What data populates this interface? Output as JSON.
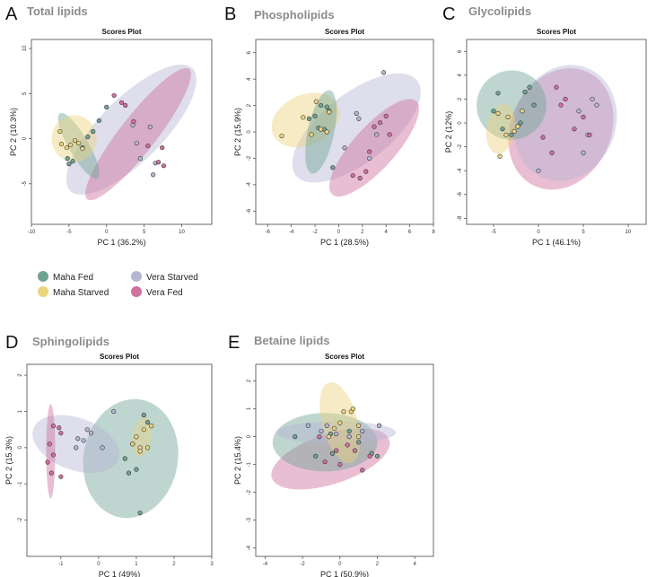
{
  "colors": {
    "Maha Fed": "#6fa394",
    "Maha Starved": "#ecd37e",
    "Vera Starved": "#b5b6d4",
    "Vera Fed": "#cf6f9e"
  },
  "legend": {
    "items": [
      "Maha Fed",
      "Maha Starved",
      "Vera Starved",
      "Vera Fed"
    ]
  },
  "chart_data": [
    {
      "letter": "A",
      "panel_title": "Total lipids",
      "title": "Scores Plot",
      "type": "scatter",
      "xlabel": "PC 1 (36.2%)",
      "ylabel": "PC 2 (10.3%)",
      "xlim": [
        -10,
        14
      ],
      "ylim": [
        -9.5,
        11
      ],
      "xticks": [
        -10,
        -5,
        0,
        5,
        10
      ],
      "yticks": [
        -5,
        0,
        5,
        10
      ],
      "ellipses": [
        {
          "group": "Vera Starved",
          "cx": 3.3,
          "cy": 1.0,
          "rx": 11.5,
          "ry": 3.5,
          "angle": -45
        },
        {
          "group": "Vera Fed",
          "cx": 4.2,
          "cy": 0.5,
          "rx": 11.0,
          "ry": 2.0,
          "angle": -52
        },
        {
          "group": "Maha Fed",
          "cx": -3.7,
          "cy": -0.8,
          "rx": 5.0,
          "ry": 1.1,
          "angle": 60
        },
        {
          "group": "Maha Starved",
          "cx": -4.3,
          "cy": 0.0,
          "rx": 3.0,
          "ry": 2.6,
          "angle": 0
        }
      ],
      "series": [
        {
          "name": "Maha Fed",
          "points": [
            [
              -5.2,
              -2.2
            ],
            [
              -5.0,
              -2.8
            ],
            [
              -4.5,
              -2.5
            ],
            [
              -3.2,
              -1.0
            ],
            [
              -2.5,
              0.2
            ],
            [
              -1.8,
              0.8
            ],
            [
              -1.0,
              2.0
            ],
            [
              0.0,
              3.5
            ]
          ]
        },
        {
          "name": "Maha Starved",
          "points": [
            [
              -6.2,
              0.8
            ],
            [
              -6.0,
              -0.6
            ],
            [
              -5.3,
              -1.0
            ],
            [
              -4.8,
              -0.7
            ],
            [
              -4.2,
              -0.2
            ],
            [
              -3.7,
              -0.5
            ],
            [
              -3.2,
              -1.1
            ]
          ]
        },
        {
          "name": "Vera Starved",
          "points": [
            [
              3.5,
              1.5
            ],
            [
              4.0,
              -0.5
            ],
            [
              4.5,
              -2.2
            ],
            [
              5.8,
              1.3
            ],
            [
              6.2,
              -4.0
            ],
            [
              6.5,
              -2.7
            ]
          ]
        },
        {
          "name": "Vera Fed",
          "points": [
            [
              1.0,
              4.8
            ],
            [
              2.0,
              4.0
            ],
            [
              2.5,
              3.7
            ],
            [
              3.6,
              1.9
            ],
            [
              5.5,
              -0.8
            ],
            [
              6.9,
              -2.6
            ],
            [
              7.4,
              -1.0
            ],
            [
              7.6,
              -3.0
            ]
          ]
        }
      ]
    },
    {
      "letter": "B",
      "panel_title": "Phospholipids",
      "title": "Scores Plot",
      "type": "scatter",
      "xlabel": "PC 1 (28.5%)",
      "ylabel": "PC 2 (15.9%)",
      "xlim": [
        -7,
        8
      ],
      "ylim": [
        -7,
        7
      ],
      "xticks": [
        -6,
        -4,
        -2,
        0,
        2,
        4,
        6,
        8
      ],
      "yticks": [
        -6,
        -4,
        -2,
        0,
        2,
        4,
        6
      ],
      "ellipses": [
        {
          "group": "Vera Starved",
          "cx": 1.5,
          "cy": 0.3,
          "rx": 6.5,
          "ry": 2.6,
          "angle": -38
        },
        {
          "group": "Vera Fed",
          "cx": 3.0,
          "cy": -1.2,
          "rx": 5.3,
          "ry": 1.6,
          "angle": -48
        },
        {
          "group": "Maha Starved",
          "cx": -2.8,
          "cy": 0.9,
          "rx": 3.0,
          "ry": 1.9,
          "angle": -25
        },
        {
          "group": "Maha Fed",
          "cx": -1.5,
          "cy": 0.0,
          "rx": 3.6,
          "ry": 1.0,
          "angle": -78
        }
      ],
      "series": [
        {
          "name": "Maha Fed",
          "points": [
            [
              -2.5,
              1.0
            ],
            [
              -2.0,
              1.2
            ],
            [
              -1.7,
              0.3
            ],
            [
              -1.5,
              2.0
            ],
            [
              -1.2,
              0.2
            ],
            [
              -1.0,
              1.9
            ],
            [
              -0.8,
              1.6
            ],
            [
              -0.5,
              -2.7
            ]
          ]
        },
        {
          "name": "Maha Starved",
          "points": [
            [
              -4.8,
              -0.3
            ],
            [
              -3.0,
              1.1
            ],
            [
              -2.3,
              -0.2
            ],
            [
              -1.9,
              2.3
            ],
            [
              -1.5,
              0.2
            ],
            [
              -1.0,
              0.0
            ],
            [
              -0.8,
              1.5
            ]
          ]
        },
        {
          "name": "Vera Starved",
          "points": [
            [
              0.5,
              -1.2
            ],
            [
              1.5,
              1.4
            ],
            [
              1.7,
              1.0
            ],
            [
              3.8,
              4.5
            ],
            [
              3.2,
              -0.2
            ],
            [
              2.6,
              -2.0
            ]
          ]
        },
        {
          "name": "Vera Fed",
          "points": [
            [
              1.2,
              -3.3
            ],
            [
              1.8,
              -3.5
            ],
            [
              2.3,
              -3.0
            ],
            [
              2.6,
              -1.5
            ],
            [
              3.0,
              0.4
            ],
            [
              3.5,
              0.7
            ],
            [
              4.0,
              1.2
            ],
            [
              4.3,
              -0.2
            ]
          ]
        }
      ]
    },
    {
      "letter": "C",
      "panel_title": "Glycolipids",
      "title": "Scores Plot",
      "type": "scatter",
      "xlabel": "PC 1 (46.1%)",
      "ylabel": "PC 2 (12%)",
      "xlim": [
        -8,
        12
      ],
      "ylim": [
        -8.5,
        7
      ],
      "xticks": [
        -5,
        0,
        5,
        10
      ],
      "yticks": [
        -8,
        -6,
        -4,
        -2,
        0,
        2,
        4,
        6
      ],
      "ellipses": [
        {
          "group": "Vera Fed",
          "cx": 2.5,
          "cy": -0.5,
          "rx": 7.0,
          "ry": 4.2,
          "angle": -65
        },
        {
          "group": "Vera Starved",
          "cx": 3.0,
          "cy": 0.0,
          "rx": 6.6,
          "ry": 4.2,
          "angle": -68
        },
        {
          "group": "Maha Fed",
          "cx": -3.0,
          "cy": 1.5,
          "rx": 3.9,
          "ry": 2.9,
          "angle": -28
        },
        {
          "group": "Maha Starved",
          "cx": -4.2,
          "cy": -0.5,
          "rx": 2.8,
          "ry": 1.2,
          "angle": -82
        }
      ],
      "series": [
        {
          "name": "Maha Fed",
          "points": [
            [
              -5.0,
              1.0
            ],
            [
              -4.5,
              2.5
            ],
            [
              -4.0,
              -0.5
            ],
            [
              -3.0,
              -1.0
            ],
            [
              -2.0,
              0.0
            ],
            [
              -1.5,
              2.6
            ],
            [
              -1.0,
              3.0
            ],
            [
              -0.5,
              1.5
            ]
          ]
        },
        {
          "name": "Maha Starved",
          "points": [
            [
              -4.5,
              0.8
            ],
            [
              -4.3,
              -2.8
            ],
            [
              -3.6,
              -1.0
            ],
            [
              -3.4,
              0.5
            ],
            [
              -2.7,
              -0.7
            ],
            [
              -2.3,
              -0.3
            ],
            [
              -1.8,
              1.0
            ]
          ]
        },
        {
          "name": "Vera Starved",
          "points": [
            [
              0.0,
              -4.0
            ],
            [
              4.5,
              1.0
            ],
            [
              5.0,
              -2.5
            ],
            [
              5.5,
              -1.0
            ],
            [
              6.0,
              2.0
            ],
            [
              6.5,
              1.5
            ]
          ]
        },
        {
          "name": "Vera Fed",
          "points": [
            [
              0.5,
              -1.2
            ],
            [
              1.5,
              -2.5
            ],
            [
              2.0,
              3.0
            ],
            [
              2.5,
              1.5
            ],
            [
              3.0,
              2.0
            ],
            [
              4.0,
              -0.5
            ],
            [
              5.0,
              0.5
            ],
            [
              5.7,
              -1.0
            ]
          ]
        }
      ]
    },
    {
      "letter": "D",
      "panel_title": "Sphingolipids",
      "title": "Scores Plot",
      "type": "scatter",
      "xlabel": "PC 1 (49%)",
      "ylabel": "PC 2 (15.3%)",
      "xlim": [
        -1.9,
        3.0
      ],
      "ylim": [
        -3.0,
        2.3
      ],
      "xticks": [
        -1,
        0,
        1,
        2,
        3
      ],
      "yticks": [
        -2,
        -1,
        0,
        1,
        2
      ],
      "ellipses": [
        {
          "group": "Maha Fed",
          "cx": 0.85,
          "cy": -0.3,
          "rx": 1.25,
          "ry": 1.65,
          "angle": 10
        },
        {
          "group": "Vera Starved",
          "cx": -0.6,
          "cy": 0.1,
          "rx": 1.2,
          "ry": 0.72,
          "angle": 20
        },
        {
          "group": "Maha Starved",
          "cx": 1.15,
          "cy": 0.3,
          "rx": 0.25,
          "ry": 0.55,
          "angle": 10
        },
        {
          "group": "Vera Fed",
          "cx": -1.27,
          "cy": -0.1,
          "rx": 0.12,
          "ry": 1.3,
          "angle": 0
        }
      ],
      "series": [
        {
          "name": "Maha Fed",
          "points": [
            [
              1.2,
              0.9
            ],
            [
              1.3,
              0.7
            ],
            [
              0.7,
              -0.3
            ],
            [
              0.8,
              -0.7
            ],
            [
              1.0,
              -0.6
            ],
            [
              1.1,
              -1.8
            ],
            [
              0.9,
              0.1
            ]
          ]
        },
        {
          "name": "Maha Starved",
          "points": [
            [
              0.9,
              0.1
            ],
            [
              1.0,
              0.3
            ],
            [
              1.1,
              0.0
            ],
            [
              1.2,
              0.5
            ],
            [
              1.3,
              0.0
            ],
            [
              1.4,
              0.6
            ],
            [
              1.1,
              -0.1
            ]
          ]
        },
        {
          "name": "Vera Starved",
          "points": [
            [
              0.4,
              1.0
            ],
            [
              -0.2,
              0.4
            ],
            [
              -0.3,
              0.5
            ],
            [
              -0.4,
              0.2
            ],
            [
              -0.55,
              0.25
            ],
            [
              -0.6,
              0.0
            ],
            [
              0.1,
              0.0
            ]
          ]
        },
        {
          "name": "Vera Fed",
          "points": [
            [
              -1.2,
              0.6
            ],
            [
              -1.05,
              0.55
            ],
            [
              -1.0,
              0.4
            ],
            [
              -1.3,
              0.1
            ],
            [
              -1.35,
              -0.4
            ],
            [
              -1.25,
              -0.7
            ],
            [
              -1.0,
              -0.8
            ],
            [
              -1.2,
              -0.2
            ]
          ]
        }
      ]
    },
    {
      "letter": "E",
      "panel_title": "Betaine lipids",
      "title": "Scores Plot",
      "type": "scatter",
      "xlabel": "PC 1 (50.9%)",
      "ylabel": "PC 2 (15.4%)",
      "xlim": [
        -4.5,
        5.0
      ],
      "ylim": [
        -4.3,
        2.6
      ],
      "xticks": [
        -4,
        -2,
        0,
        2,
        4
      ],
      "yticks": [
        -4,
        -3,
        -2,
        -1,
        0,
        1,
        2
      ],
      "ellipses": [
        {
          "group": "Vera Fed",
          "cx": -0.5,
          "cy": -0.8,
          "rx": 3.3,
          "ry": 0.9,
          "angle": -18
        },
        {
          "group": "Maha Fed",
          "cx": -0.8,
          "cy": -0.2,
          "rx": 2.8,
          "ry": 1.05,
          "angle": 0
        },
        {
          "group": "Vera Starved",
          "cx": -0.2,
          "cy": 0.15,
          "rx": 3.2,
          "ry": 0.4,
          "angle": 0
        },
        {
          "group": "Maha Starved",
          "cx": 0.0,
          "cy": 0.5,
          "rx": 0.95,
          "ry": 1.5,
          "angle": -15
        }
      ],
      "series": [
        {
          "name": "Maha Fed",
          "points": [
            [
              -2.4,
              0.0
            ],
            [
              -1.3,
              -0.7
            ],
            [
              -0.4,
              -0.6
            ],
            [
              -0.5,
              0.1
            ],
            [
              0.5,
              0.2
            ],
            [
              1.7,
              -0.6
            ],
            [
              2.0,
              -0.7
            ],
            [
              1.0,
              -0.2
            ]
          ]
        },
        {
          "name": "Maha Starved",
          "points": [
            [
              -0.3,
              0.3
            ],
            [
              0.0,
              0.5
            ],
            [
              0.2,
              0.9
            ],
            [
              0.6,
              0.9
            ],
            [
              0.7,
              1.0
            ],
            [
              1.0,
              0.4
            ],
            [
              1.0,
              0.0
            ],
            [
              -0.6,
              0.0
            ]
          ]
        },
        {
          "name": "Vera Starved",
          "points": [
            [
              -1.7,
              0.4
            ],
            [
              -1.0,
              0.2
            ],
            [
              -0.7,
              0.4
            ],
            [
              -0.2,
              0.1
            ],
            [
              0.5,
              0.0
            ],
            [
              1.2,
              0.2
            ],
            [
              2.1,
              0.4
            ]
          ]
        },
        {
          "name": "Vera Fed",
          "points": [
            [
              -0.8,
              -0.9
            ],
            [
              -0.2,
              -0.5
            ],
            [
              0.0,
              -1.0
            ],
            [
              0.4,
              -0.3
            ],
            [
              0.8,
              -0.5
            ],
            [
              1.2,
              -1.2
            ],
            [
              -1.1,
              0.0
            ],
            [
              1.6,
              -0.7
            ]
          ]
        }
      ]
    }
  ]
}
